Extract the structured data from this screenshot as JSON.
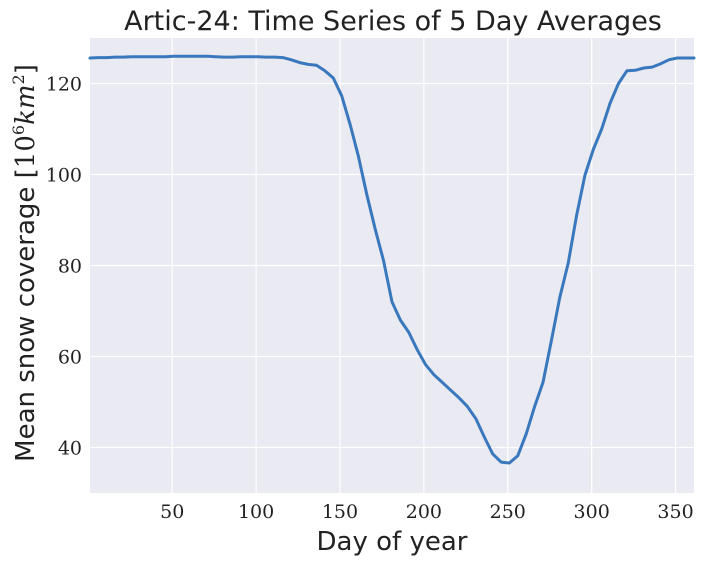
{
  "chart_data": {
    "type": "line",
    "title": "Artic-24: Time Series of 5 Day Averages",
    "xlabel": "Day of year",
    "ylabel_text": "Mean snow coverage [",
    "ylabel_unit_base": "10",
    "ylabel_unit_exp": "6",
    "ylabel_unit_km": "km",
    "ylabel_unit_km_exp": "2",
    "ylabel_close": "]",
    "xlim": [
      1,
      361
    ],
    "ylim": [
      30,
      130
    ],
    "xticks": [
      50,
      100,
      150,
      200,
      250,
      300,
      350
    ],
    "yticks": [
      40,
      60,
      80,
      100,
      120
    ],
    "grid": true,
    "series": [
      {
        "color": "#3a78bd",
        "x": [
          1,
          6,
          11,
          16,
          21,
          26,
          31,
          36,
          41,
          46,
          51,
          56,
          61,
          66,
          71,
          76,
          81,
          86,
          91,
          96,
          101,
          106,
          111,
          116,
          121,
          126,
          131,
          136,
          141,
          146,
          151,
          156,
          161,
          166,
          171,
          176,
          181,
          186,
          191,
          196,
          201,
          206,
          211,
          216,
          221,
          226,
          231,
          236,
          241,
          246,
          251,
          256,
          261,
          266,
          271,
          276,
          281,
          286,
          291,
          296,
          301,
          306,
          311,
          316,
          321,
          326,
          331,
          336,
          341,
          346,
          351,
          356,
          361
        ],
        "y": [
          125.6,
          125.7,
          125.7,
          125.8,
          125.8,
          125.9,
          125.9,
          125.9,
          125.9,
          125.9,
          126.0,
          126.0,
          126.0,
          126.0,
          126.0,
          125.9,
          125.8,
          125.8,
          125.9,
          125.9,
          125.9,
          125.8,
          125.8,
          125.7,
          125.2,
          124.6,
          124.2,
          124.0,
          122.8,
          121.2,
          117.3,
          111.0,
          104.0,
          95.6,
          88.0,
          81.0,
          72.0,
          68.0,
          65.3,
          61.5,
          58.2,
          56.0,
          54.3,
          52.6,
          50.9,
          49.0,
          46.3,
          42.3,
          38.6,
          36.8,
          36.6,
          38.2,
          43.0,
          49.0,
          54.3,
          63.5,
          73.0,
          80.5,
          91.0,
          99.8,
          105.5,
          110.0,
          115.7,
          120.0,
          122.8,
          122.9,
          123.4,
          123.6,
          124.3,
          125.2,
          125.6,
          125.6,
          125.6
        ]
      }
    ]
  }
}
